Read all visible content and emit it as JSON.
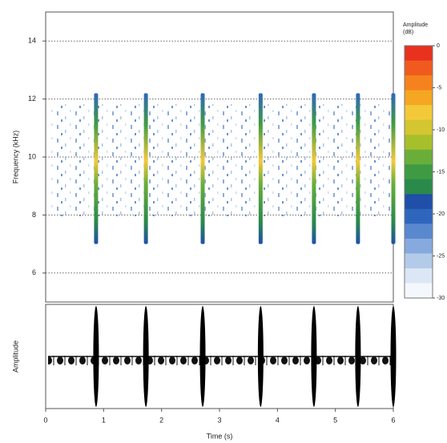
{
  "chart_data": {
    "type": "spectrogram",
    "xlabel": "Time (s)",
    "ylabel": "Frequency (kHz)",
    "xlim": [
      0,
      6
    ],
    "xticks": [
      0,
      1,
      2,
      3,
      4,
      5,
      6
    ],
    "ylim": [
      5,
      15
    ],
    "yticks": [
      6,
      8,
      10,
      12,
      14
    ],
    "grid": true,
    "pulses": {
      "times": [
        0.87,
        1.73,
        2.71,
        3.71,
        4.63,
        5.39,
        6.0
      ],
      "freq_low": 7,
      "freq_high": 12.2
    },
    "colorbar": {
      "title": [
        "Amplitude",
        "(dB)"
      ],
      "clim": [
        -30,
        0
      ],
      "ticks": [
        0,
        -5,
        -10,
        -15,
        -20,
        -25,
        -30
      ],
      "colors": [
        "#e8321e",
        "#f05a1e",
        "#f5821e",
        "#f5a623",
        "#f3c93a",
        "#d4c630",
        "#a8bf2c",
        "#6aae3a",
        "#3e9b44",
        "#2a8a4a",
        "#1f4fa8",
        "#2f66bd",
        "#5a88cf",
        "#86aadd",
        "#b3cbe9",
        "#dbe7f5",
        "#f4f8fd"
      ]
    },
    "waveform": {
      "ylabel": "Amplitude"
    }
  }
}
